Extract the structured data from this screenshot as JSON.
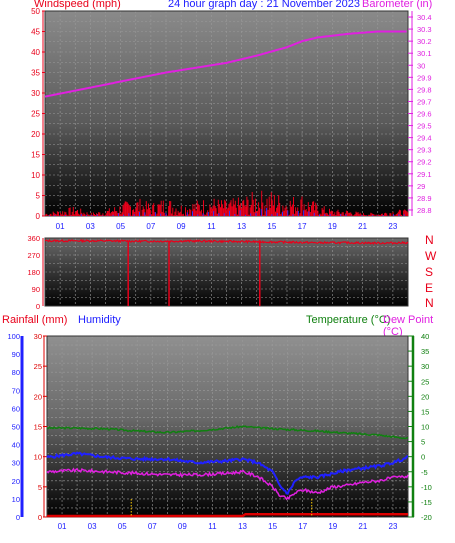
{
  "header": {
    "windspeed_label": "Windspeed (mph)",
    "title": "24 hour graph day : 21 November 2023",
    "barometer_label": "Barometer (in)"
  },
  "section3": {
    "rainfall_label": "Rainfall (mm)",
    "humidity_label": "Humidity",
    "temperature_label": "Temperature (°C)",
    "dewpoint_label": "Dew Point (°C)"
  },
  "direction_letters": [
    "N",
    "W",
    "S",
    "E",
    "N"
  ],
  "colors": {
    "windspeed": "#e8001a",
    "barometer": "#e020e0",
    "direction": "#e8001a",
    "rain": "#dd0000",
    "humidity": "#2020ff",
    "temperature": "#108010",
    "dewpoint": "#e020e0",
    "axis_blue": "#2020ff",
    "axis_green": "#108010"
  },
  "chart_data": [
    {
      "type": "line",
      "name": "windspeed-barometer",
      "x_ticks": [
        "01",
        "03",
        "05",
        "07",
        "09",
        "11",
        "13",
        "15",
        "17",
        "19",
        "21",
        "23"
      ],
      "xlim": [
        0,
        24
      ],
      "series": [
        {
          "name": "Windspeed (mph)",
          "axis": "left",
          "ylim": [
            0,
            50
          ],
          "y_ticks": [
            0,
            5,
            10,
            15,
            20,
            25,
            30,
            35,
            40,
            45,
            50
          ],
          "x": [
            0,
            1,
            2,
            3,
            4,
            5,
            6,
            7,
            8,
            9,
            10,
            11,
            12,
            13,
            14,
            15,
            16,
            17,
            18,
            19,
            20,
            21,
            22,
            23,
            24
          ],
          "values": [
            0.5,
            1,
            1.5,
            0.5,
            1,
            2,
            3,
            2,
            3,
            2,
            2.5,
            3,
            2.5,
            3,
            4,
            4,
            3,
            3.5,
            2,
            1,
            1,
            0.5,
            0.5,
            1,
            1
          ]
        },
        {
          "name": "Barometer (in)",
          "axis": "right",
          "ylim": [
            28.75,
            30.45
          ],
          "y_ticks": [
            28.8,
            28.9,
            29,
            29.1,
            29.2,
            29.3,
            29.4,
            29.5,
            29.6,
            29.7,
            29.8,
            29.9,
            30,
            30.1,
            30.2,
            30.3,
            30.4
          ],
          "x": [
            0,
            2,
            4,
            6,
            8,
            10,
            12,
            14,
            16,
            17,
            18,
            20,
            22,
            24
          ],
          "values": [
            29.74,
            29.79,
            29.84,
            29.89,
            29.94,
            29.98,
            30.02,
            30.08,
            30.15,
            30.2,
            30.23,
            30.26,
            30.28,
            30.28
          ]
        }
      ]
    },
    {
      "type": "scatter",
      "name": "wind-direction",
      "xlim": [
        0,
        24
      ],
      "ylim": [
        0,
        360
      ],
      "y_ticks": [
        0,
        45,
        90,
        135,
        180,
        225,
        270,
        315,
        360
      ],
      "x": [
        0,
        2,
        4,
        6,
        8,
        10,
        12,
        14,
        16,
        18,
        20,
        22,
        24
      ],
      "values": [
        345,
        345,
        345,
        343,
        343,
        344,
        342,
        340,
        338,
        335,
        335,
        333,
        335
      ],
      "drops_to_zero_at": [
        5.5,
        8.2,
        14.2
      ]
    },
    {
      "type": "line",
      "name": "rain-humidity-temperature",
      "x_ticks": [
        "01",
        "03",
        "05",
        "07",
        "09",
        "11",
        "13",
        "15",
        "17",
        "19",
        "21",
        "23"
      ],
      "xlim": [
        0,
        24
      ],
      "series": [
        {
          "name": "Rainfall (mm)",
          "axis": "left-inner",
          "ylim": [
            0,
            30
          ],
          "y_ticks": [
            0,
            5,
            10,
            15,
            20,
            25,
            30
          ],
          "x": [
            0,
            13,
            13.2,
            24
          ],
          "values": [
            0,
            0,
            0.3,
            0.3
          ]
        },
        {
          "name": "Humidity",
          "axis": "left-outer",
          "ylim": [
            0,
            100
          ],
          "y_ticks": [
            0,
            10,
            20,
            30,
            40,
            50,
            60,
            70,
            80,
            90,
            100
          ],
          "x": [
            0,
            2,
            4,
            6,
            8,
            10,
            12,
            13,
            14,
            15,
            15.5,
            16,
            16.5,
            17,
            18,
            19,
            20,
            21,
            22,
            23,
            24
          ],
          "values": [
            33,
            35,
            33,
            32,
            32,
            30,
            31,
            32,
            30,
            25,
            17,
            13,
            20,
            22,
            22,
            24,
            26,
            27,
            28,
            30,
            33
          ]
        },
        {
          "name": "Temperature (°C)",
          "axis": "right",
          "ylim": [
            -20,
            40
          ],
          "y_ticks": [
            -20,
            -15,
            -10,
            -5,
            0,
            5,
            10,
            15,
            20,
            25,
            30,
            35,
            40
          ],
          "x": [
            0,
            2,
            4,
            6,
            8,
            10,
            12,
            13,
            14,
            16,
            18,
            20,
            22,
            24
          ],
          "values": [
            9.5,
            9.5,
            9.2,
            8.5,
            8,
            8.6,
            9.5,
            10,
            9.6,
            9,
            8.5,
            7.8,
            7.2,
            6
          ]
        },
        {
          "name": "Dew Point (°C)",
          "axis": "right",
          "ylim": [
            -20,
            40
          ],
          "x": [
            0,
            2,
            4,
            6,
            8,
            10,
            12,
            13,
            14,
            15,
            15.5,
            16,
            16.5,
            17,
            18,
            19,
            20,
            21,
            22,
            23,
            24
          ],
          "values": [
            -5,
            -4.5,
            -5,
            -5.5,
            -6,
            -6,
            -5.5,
            -5,
            -6.5,
            -10,
            -13,
            -14,
            -12,
            -11,
            -12,
            -10,
            -9.5,
            -8.5,
            -8,
            -7,
            -6.5
          ]
        }
      ]
    }
  ]
}
